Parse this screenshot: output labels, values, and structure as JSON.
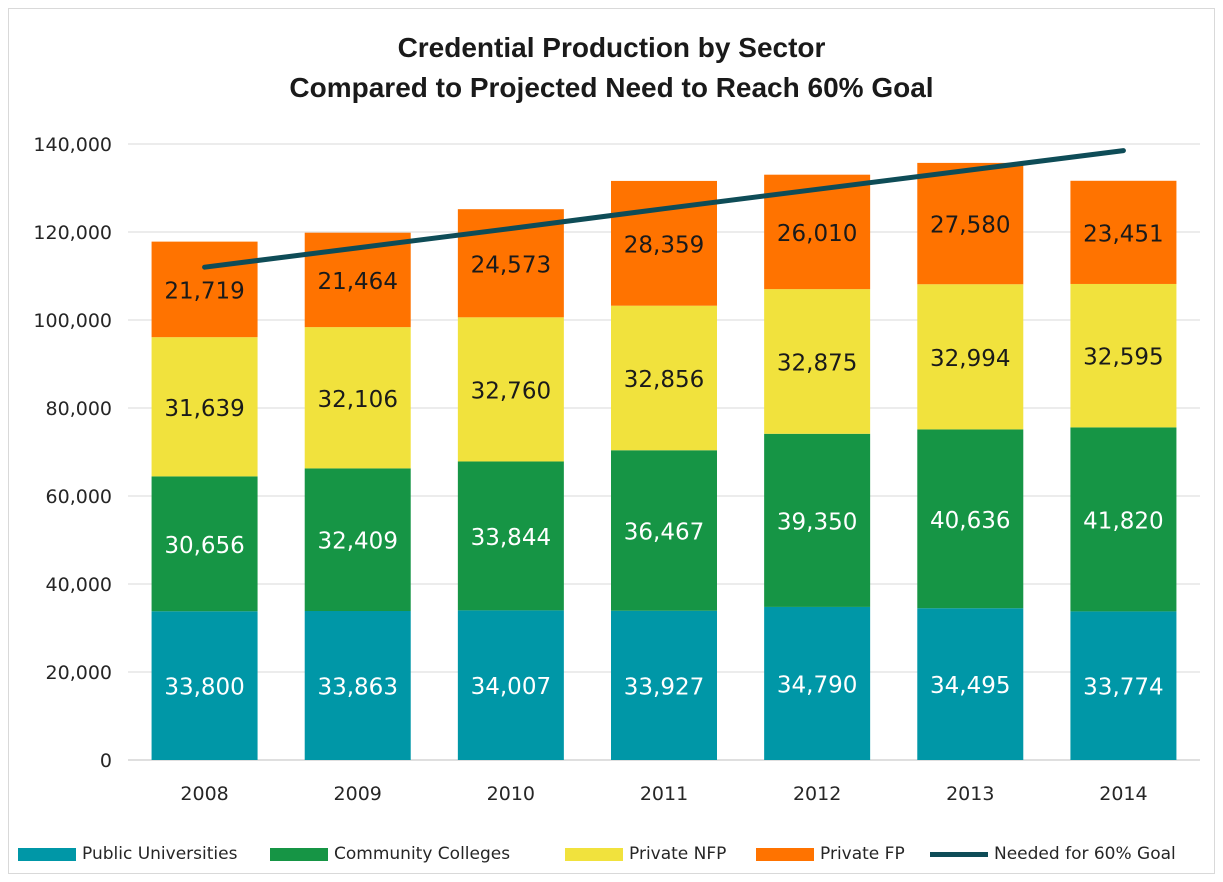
{
  "chart_data": {
    "type": "bar",
    "stacked": true,
    "title": "Credential Production by Sector",
    "subtitle": "Compared to Projected Need to Reach 60% Goal",
    "categories": [
      "2008",
      "2009",
      "2010",
      "2011",
      "2012",
      "2013",
      "2014"
    ],
    "ylim": [
      0,
      140000
    ],
    "yticks": [
      "0",
      "20,000",
      "40,000",
      "60,000",
      "80,000",
      "100,000",
      "120,000",
      "140,000"
    ],
    "grid": true,
    "legend_position": "bottom",
    "series": [
      {
        "name": "Public Universities",
        "color": "#0097a7",
        "label_color": "#ffffff",
        "values": [
          33800,
          33863,
          34007,
          33927,
          34790,
          34495,
          33774
        ],
        "labels": [
          "33,800",
          "33,863",
          "34,007",
          "33,927",
          "34,790",
          "34,495",
          "33,774"
        ]
      },
      {
        "name": "Community Colleges",
        "color": "#169545",
        "label_color": "#ffffff",
        "values": [
          30656,
          32409,
          33844,
          36467,
          39350,
          40636,
          41820
        ],
        "labels": [
          "30,656",
          "32,409",
          "33,844",
          "36,467",
          "39,350",
          "40,636",
          "41,820"
        ]
      },
      {
        "name": "Private NFP",
        "color": "#f1e23d",
        "label_color": "#1a1a1a",
        "values": [
          31639,
          32106,
          32760,
          32856,
          32875,
          32994,
          32595
        ],
        "labels": [
          "31,639",
          "32,106",
          "32,760",
          "32,856",
          "32,875",
          "32,994",
          "32,595"
        ]
      },
      {
        "name": "Private FP",
        "color": "#ff7300",
        "label_color": "#1a1a1a",
        "values": [
          21719,
          21464,
          24573,
          28359,
          26010,
          27580,
          23451
        ],
        "labels": [
          "21,719",
          "21,464",
          "24,573",
          "28,359",
          "26,010",
          "27,580",
          "23,451"
        ]
      }
    ],
    "line_series": {
      "name": "Needed for 60% Goal",
      "color": "#0e4c57",
      "values": [
        112000,
        116400,
        120800,
        125300,
        129700,
        134100,
        138500
      ]
    }
  }
}
